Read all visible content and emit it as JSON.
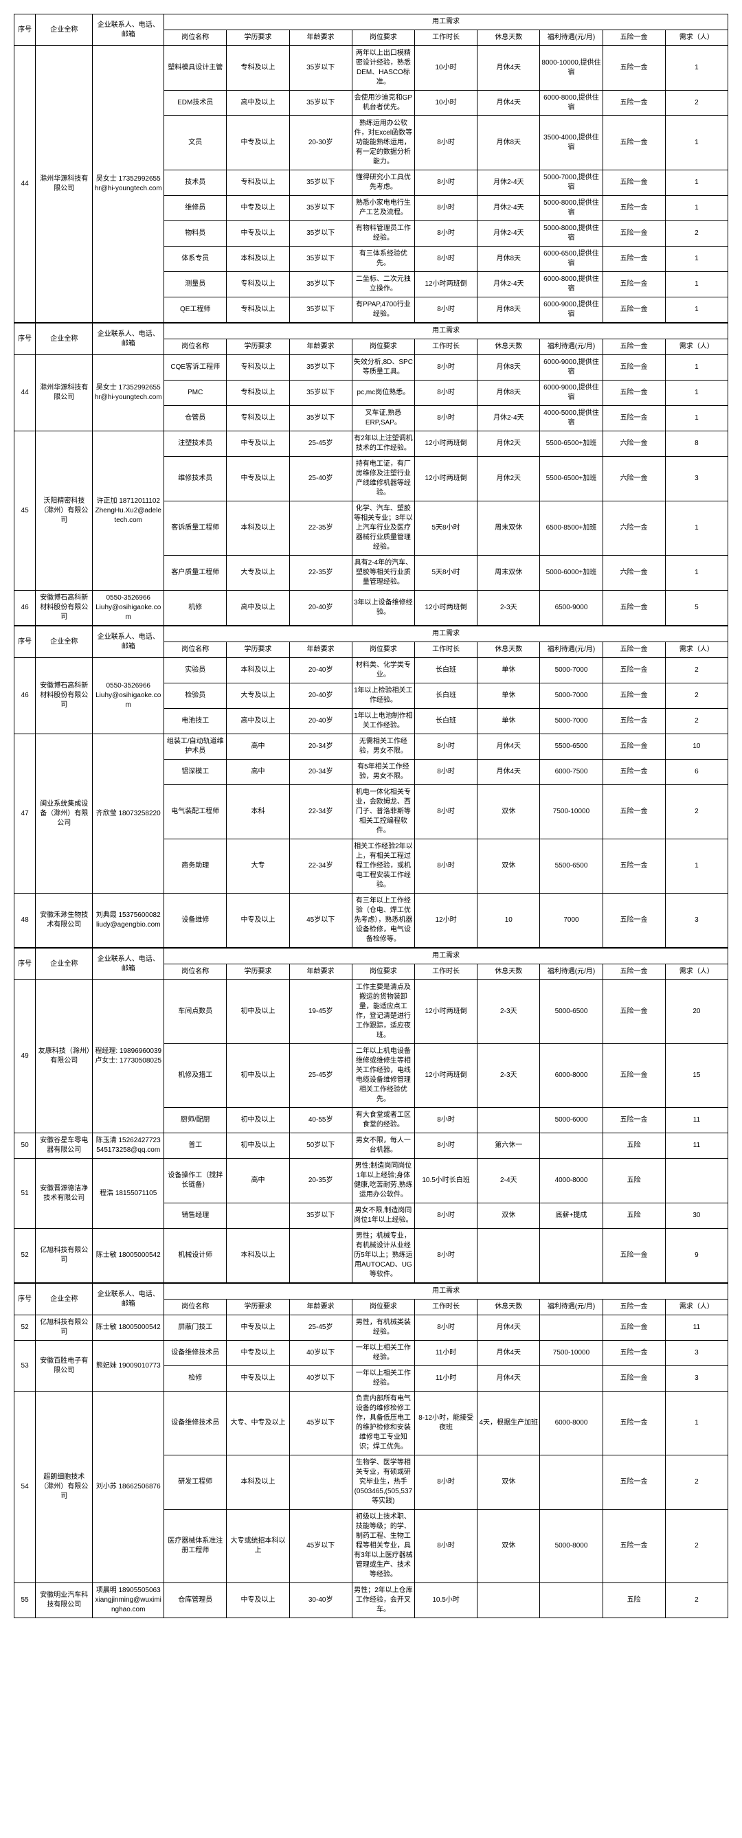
{
  "headers": {
    "seq": "序号",
    "company": "企业全称",
    "contact": "企业联系人、电话、邮箱",
    "group": "用工需求",
    "job": "岗位名称",
    "edu": "学历要求",
    "age": "年龄要求",
    "req": "岗位要求",
    "hours": "工作时长",
    "rest": "休息天数",
    "salary": "福利待遇(元/月)",
    "insurance": "五险一金",
    "demand": "需求（人）"
  },
  "tables": [
    {
      "companies": [
        {
          "seq": "44",
          "name": "滁州华源科技有限公司",
          "contact": "吴女士 17352992655 hr@hi-youngtech.com",
          "jobs": [
            {
              "job": "塑料模具设计主管",
              "edu": "专科及以上",
              "age": "35岁以下",
              "req": "两年以上出口模精密设计经验，熟悉DEM、HASCO标准。",
              "hours": "10小时",
              "rest": "月休4天",
              "salary": "8000-10000,提供住宿",
              "insurance": "五险一金",
              "demand": "1"
            },
            {
              "job": "EDM技术员",
              "edu": "高中及以上",
              "age": "35岁以下",
              "req": "会使用沙迪克和GP机台者优先。",
              "hours": "10小时",
              "rest": "月休4天",
              "salary": "6000-8000,提供住宿",
              "insurance": "五险一金",
              "demand": "2"
            },
            {
              "job": "文员",
              "edu": "中专及以上",
              "age": "20-30岁",
              "req": "熟练运用办公软件，对Excel函数等功能能熟练运用，有一定的数据分析能力。",
              "hours": "8小时",
              "rest": "月休8天",
              "salary": "3500-4000,提供住宿",
              "insurance": "五险一金",
              "demand": "1"
            },
            {
              "job": "技术员",
              "edu": "专科及以上",
              "age": "35岁以下",
              "req": "懂得研究小工具优先考虑。",
              "hours": "8小时",
              "rest": "月休2-4天",
              "salary": "5000-7000,提供住宿",
              "insurance": "五险一金",
              "demand": "1"
            },
            {
              "job": "维修员",
              "edu": "中专及以上",
              "age": "35岁以下",
              "req": "熟悉小家电电行生产工艺及流程。",
              "hours": "8小时",
              "rest": "月休2-4天",
              "salary": "5000-8000,提供住宿",
              "insurance": "五险一金",
              "demand": "1"
            },
            {
              "job": "物料员",
              "edu": "中专及以上",
              "age": "35岁以下",
              "req": "有物料管理员工作经验。",
              "hours": "8小时",
              "rest": "月休2-4天",
              "salary": "5000-8000,提供住宿",
              "insurance": "五险一金",
              "demand": "2"
            },
            {
              "job": "体系专员",
              "edu": "本科及以上",
              "age": "35岁以下",
              "req": "有三体系经验优先。",
              "hours": "8小时",
              "rest": "月休8天",
              "salary": "6000-6500,提供住宿",
              "insurance": "五险一金",
              "demand": "1"
            },
            {
              "job": "测量员",
              "edu": "专科及以上",
              "age": "35岁以下",
              "req": "二坐标、二次元独立操作。",
              "hours": "12小时两班倒",
              "rest": "月休2-4天",
              "salary": "6000-8000,提供住宿",
              "insurance": "五险一金",
              "demand": "1"
            },
            {
              "job": "QE工程师",
              "edu": "专科及以上",
              "age": "35岁以下",
              "req": "有PPAP,4700行业经验。",
              "hours": "8小时",
              "rest": "月休8天",
              "salary": "6000-9000,提供住宿",
              "insurance": "五险一金",
              "demand": "1"
            }
          ]
        }
      ]
    },
    {
      "companies": [
        {
          "seq": "44",
          "name": "滁州华源科技有限公司",
          "contact": "吴女士 17352992655 hr@hi-youngtech.com",
          "jobs": [
            {
              "job": "CQE客诉工程师",
              "edu": "专科及以上",
              "age": "35岁以下",
              "req": "失效分析,8D、SPC等质量工具。",
              "hours": "8小时",
              "rest": "月休8天",
              "salary": "6000-9000,提供住宿",
              "insurance": "五险一金",
              "demand": "1"
            },
            {
              "job": "PMC",
              "edu": "专科及以上",
              "age": "35岁以下",
              "req": "pc,mc岗位熟悉。",
              "hours": "8小时",
              "rest": "月休8天",
              "salary": "6000-9000,提供住宿",
              "insurance": "五险一金",
              "demand": "1"
            },
            {
              "job": "仓管员",
              "edu": "专科及以上",
              "age": "35岁以下",
              "req": "叉车证,熟悉ERP,SAP。",
              "hours": "8小时",
              "rest": "月休2-4天",
              "salary": "4000-5000,提供住宿",
              "insurance": "五险一金",
              "demand": "1"
            }
          ]
        },
        {
          "seq": "45",
          "name": "沃阳精密科技（滁州）有限公司",
          "contact": "许正加 18712011102 ZhengHu.Xu2@adeletech.com",
          "jobs": [
            {
              "job": "注塑技术员",
              "edu": "中专及以上",
              "age": "25-45岁",
              "req": "有2年以上注塑调机技术的工作经验。",
              "hours": "12小时两班倒",
              "rest": "月休2天",
              "salary": "5500-6500+加班",
              "insurance": "六险一金",
              "demand": "8"
            },
            {
              "job": "维修技术员",
              "edu": "中专及以上",
              "age": "25-40岁",
              "req": "持有电工证，有厂房维修及注塑行业产线维修机器等经验。",
              "hours": "12小时两班倒",
              "rest": "月休2天",
              "salary": "5500-6500+加班",
              "insurance": "六险一金",
              "demand": "3"
            },
            {
              "job": "客诉质量工程师",
              "edu": "本科及以上",
              "age": "22-35岁",
              "req": "化学、汽车、塑胶等相关专业；3年以上汽车行业及医疗器械行业质量管理经验。",
              "hours": "5天8小时",
              "rest": "周末双休",
              "salary": "6500-8500+加班",
              "insurance": "六险一金",
              "demand": "1"
            },
            {
              "job": "客户质量工程师",
              "edu": "大专及以上",
              "age": "22-35岁",
              "req": "具有2-4年的汽车、塑胶等相关行业质量管理经验。",
              "hours": "5天8小时",
              "rest": "周末双休",
              "salary": "5000-6000+加班",
              "insurance": "六险一金",
              "demand": "1"
            }
          ]
        },
        {
          "seq": "46",
          "name": "安徽博石高科新材料股份有限公司",
          "contact": "0550-3526966 Liuhy@osihigaoke.com",
          "jobs": [
            {
              "job": "机修",
              "edu": "高中及以上",
              "age": "20-40岁",
              "req": "3年以上设备维修经验。",
              "hours": "12小时两班倒",
              "rest": "2-3天",
              "salary": "6500-9000",
              "insurance": "五险一金",
              "demand": "5"
            }
          ]
        }
      ]
    },
    {
      "companies": [
        {
          "seq": "46",
          "name": "安徽博石高科新材料股份有限公司",
          "contact": "0550-3526966 Liuhy@osihigaoke.com",
          "jobs": [
            {
              "job": "实验员",
              "edu": "本科及以上",
              "age": "20-40岁",
              "req": "材料类、化学类专业。",
              "hours": "长白班",
              "rest": "单休",
              "salary": "5000-7000",
              "insurance": "五险一金",
              "demand": "2"
            },
            {
              "job": "检验员",
              "edu": "大专及以上",
              "age": "20-40岁",
              "req": "1年以上检验相关工作经验。",
              "hours": "长白班",
              "rest": "单休",
              "salary": "5000-7000",
              "insurance": "五险一金",
              "demand": "2"
            },
            {
              "job": "电池技工",
              "edu": "高中及以上",
              "age": "20-40岁",
              "req": "1年以上电池制作相关工作经验。",
              "hours": "长白班",
              "rest": "单休",
              "salary": "5000-7000",
              "insurance": "五险一金",
              "demand": "2"
            }
          ]
        },
        {
          "seq": "47",
          "name": "闽业系统集成设备（滁州）有限公司",
          "contact": "齐欣莹 18073258220",
          "jobs": [
            {
              "job": "组装工/自动轨道维护术员",
              "edu": "高中",
              "age": "20-34岁",
              "req": "无需相关工作经验，男女不限。",
              "hours": "8小时",
              "rest": "月休4天",
              "salary": "5500-6500",
              "insurance": "五险一金",
              "demand": "10"
            },
            {
              "job": "铝深模工",
              "edu": "高中",
              "age": "20-34岁",
              "req": "有5年相关工作经验，男女不限。",
              "hours": "8小时",
              "rest": "月休4天",
              "salary": "6000-7500",
              "insurance": "五险一金",
              "demand": "6"
            },
            {
              "job": "电气装配工程师",
              "edu": "本科",
              "age": "22-34岁",
              "req": "机电一体化相关专业，会欧姆龙、西门子、普洛菲斯等相关工控编程软件。",
              "hours": "8小时",
              "rest": "双休",
              "salary": "7500-10000",
              "insurance": "五险一金",
              "demand": "2"
            },
            {
              "job": "商务助理",
              "edu": "大专",
              "age": "22-34岁",
              "req": "相关工作经验2年以上，有相关工程过程工作经验，或机电工程安装工作经验。",
              "hours": "8小时",
              "rest": "双休",
              "salary": "5500-6500",
              "insurance": "五险一金",
              "demand": "1"
            }
          ]
        },
        {
          "seq": "48",
          "name": "安徽禾渺生物技术有限公司",
          "contact": "刘典霞 15375600082 liudy@agengbio.com",
          "jobs": [
            {
              "job": "设备维修",
              "edu": "中专及以上",
              "age": "45岁以下",
              "req": "有三年以上工作经验（仓电、焊工优先考虑），熟悉机器设备检修，电气设备检修等。",
              "hours": "12小时",
              "rest": "10",
              "salary": "7000",
              "insurance": "五险一金",
              "demand": "3"
            }
          ]
        }
      ]
    },
    {
      "companies": [
        {
          "seq": "49",
          "name": "友康科技（滁州）有限公司",
          "contact": "程经理: 19896960039 卢女士: 17730508025",
          "jobs": [
            {
              "job": "车间点数员",
              "edu": "初中及以上",
              "age": "19-45岁",
              "req": "工作主要是清点及搬运的货物装卸量，能适应点工作，登记清楚进行工作跟踪，适应夜班。",
              "hours": "12小时两班倒",
              "rest": "2-3天",
              "salary": "5000-6500",
              "insurance": "五险一金",
              "demand": "20"
            },
            {
              "job": "机修及措工",
              "edu": "初中及以上",
              "age": "25-45岁",
              "req": "二年以上机电设备维修或维修生等相关工作经验，电线电缆设备维修管理相关工作经验优先。",
              "hours": "12小时两班倒",
              "rest": "2-3天",
              "salary": "6000-8000",
              "insurance": "五险一金",
              "demand": "15"
            },
            {
              "job": "厨师/配厨",
              "edu": "初中及以上",
              "age": "40-55岁",
              "req": "有大食堂或者工区食堂的经验。",
              "hours": "8小时",
              "rest": "",
              "salary": "5000-6000",
              "insurance": "五险一金",
              "demand": "11"
            }
          ]
        },
        {
          "seq": "50",
          "name": "安徽谷星车零电器有限公司",
          "contact": "陈玉清 15262427723 545173258@qq.com",
          "jobs": [
            {
              "job": "普工",
              "edu": "初中及以上",
              "age": "50岁以下",
              "req": "男女不限，每人一台机器。",
              "hours": "8小时",
              "rest": "第六休一",
              "salary": "",
              "insurance": "五险",
              "demand": "11"
            }
          ]
        },
        {
          "seq": "51",
          "name": "安徽晋源德洁净技术有限公司",
          "contact": "程浩 18155071105",
          "jobs": [
            {
              "job": "设备操作工（搅拌长链备）",
              "edu": "高中",
              "age": "20-35岁",
              "req": "男性;制造岗同岗位1年以上经验;身体健康,吃苦耐劳,熟练运用办公软件。",
              "hours": "10.5小时长白班",
              "rest": "2-4天",
              "salary": "4000-8000",
              "insurance": "五险",
              "demand": ""
            },
            {
              "job": "销售经理",
              "edu": "",
              "age": "35岁以下",
              "req": "男女不限,制造岗同岗位1年以上经验。",
              "hours": "8小时",
              "rest": "双休",
              "salary": "底薪+提成",
              "insurance": "五险",
              "demand": "30"
            }
          ]
        },
        {
          "seq": "52",
          "name": "亿旭科技有限公司",
          "contact": "陈士敏 18005000542",
          "jobs": [
            {
              "job": "机械设计师",
              "edu": "本科及以上",
              "age": "",
              "req": "男性；机械专业，有机械设计从业经历5年以上；熟练运用AUTOCAD、UG等软件。",
              "hours": "8小时",
              "rest": "",
              "salary": "",
              "insurance": "五险一金",
              "demand": "9"
            }
          ]
        }
      ]
    },
    {
      "companies": [
        {
          "seq": "52",
          "name": "亿旭科技有限公司",
          "contact": "陈士敏 18005000542",
          "jobs": [
            {
              "job": "屏蔽门技工",
              "edu": "中专及以上",
              "age": "25-45岁",
              "req": "男性，有机械类装经验。",
              "hours": "8小时",
              "rest": "月休4天",
              "salary": "",
              "insurance": "五险一金",
              "demand": "11"
            }
          ]
        },
        {
          "seq": "53",
          "name": "安徽百胜电子有限公司",
          "contact": "熊妃妹 19009010773",
          "jobs": [
            {
              "job": "设备维修技术员",
              "edu": "中专及以上",
              "age": "40岁以下",
              "req": "一年以上相关工作经验。",
              "hours": "11小时",
              "rest": "月休4天",
              "salary": "7500-10000",
              "insurance": "五险一金",
              "demand": "3"
            },
            {
              "job": "检修",
              "edu": "中专及以上",
              "age": "40岁以下",
              "req": "一年以上相关工作经验。",
              "hours": "11小时",
              "rest": "月休4天",
              "salary": "",
              "insurance": "五险一金",
              "demand": "3"
            }
          ]
        },
        {
          "seq": "54",
          "name": "超朗细胞技术（滁州）有限公司",
          "contact": "刘小苏 18662506876",
          "jobs": [
            {
              "job": "设备维修技术员",
              "edu": "大专、中专及以上",
              "age": "45岁以下",
              "req": "负责内部所有电气设备的维修检修工作，具备低压电工的维护检修和安装维修电工专业知识；焊工优先。",
              "hours": "8-12小时，能接受夜班",
              "rest": "4天，根据生产加班",
              "salary": "6000-8000",
              "insurance": "五险一金",
              "demand": "1"
            },
            {
              "job": "研发工程师",
              "edu": "本科及以上",
              "age": "",
              "req": "生物学、医学等相关专业，有硕或研究毕业生，热手(0503465,(505,537等实践)",
              "hours": "8小时",
              "rest": "双休",
              "salary": "",
              "insurance": "五险一金",
              "demand": "2"
            },
            {
              "job": "医疗器械体系准注册工程师",
              "edu": "大专或统招本科以上",
              "age": "45岁以下",
              "req": "初级以上技术职、技能等级；的学、制药工程、生物工程等相关专业，具有3年以上医疗器械管理或生产、技术等经验。",
              "hours": "8小时",
              "rest": "双休",
              "salary": "5000-8000",
              "insurance": "五险一金",
              "demand": "2"
            }
          ]
        },
        {
          "seq": "55",
          "name": "安徽明业汽车科技有限公司",
          "contact": "项晨明 18905505063 xiangjinming@wuximinghao.com",
          "jobs": [
            {
              "job": "仓库管理员",
              "edu": "中专及以上",
              "age": "30-40岁",
              "req": "男性；2年以上仓库工作经验，会开叉车。",
              "hours": "10.5小时",
              "rest": "",
              "salary": "",
              "insurance": "五险",
              "demand": "2"
            }
          ]
        }
      ]
    }
  ]
}
